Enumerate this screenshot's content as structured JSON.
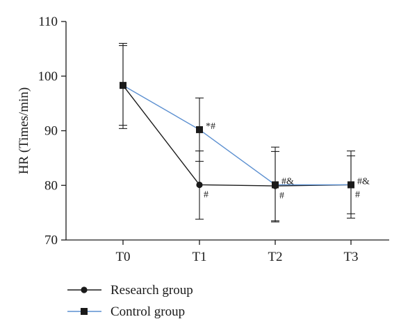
{
  "chart_data": {
    "type": "line",
    "title": "",
    "xlabel": "",
    "ylabel": "HR (Times/min)",
    "categories": [
      "T0",
      "T1",
      "T2",
      "T3"
    ],
    "ylim": [
      70,
      110
    ],
    "yticks": [
      "70",
      "80",
      "90",
      "100",
      "110"
    ],
    "grid": false,
    "legend_position": "bottom-left",
    "series": [
      {
        "name": "Research group",
        "marker": "circle",
        "color": "#1a1a1a",
        "values": [
          98.3,
          80.1,
          79.9,
          80.1
        ],
        "err_low": [
          91.0,
          73.8,
          73.5,
          74.8
        ],
        "err_high": [
          105.6,
          86.3,
          86.2,
          85.4
        ],
        "annotations": [
          "",
          "#",
          "#",
          "#"
        ]
      },
      {
        "name": "Control group",
        "marker": "square",
        "color": "#5b8fd0",
        "values": [
          98.3,
          90.2,
          80.1,
          80.1
        ],
        "err_low": [
          90.4,
          84.4,
          73.3,
          74.0
        ],
        "err_high": [
          106.0,
          96.0,
          87.0,
          86.3
        ],
        "annotations": [
          "",
          "*#",
          "#&",
          "#&"
        ]
      }
    ]
  }
}
